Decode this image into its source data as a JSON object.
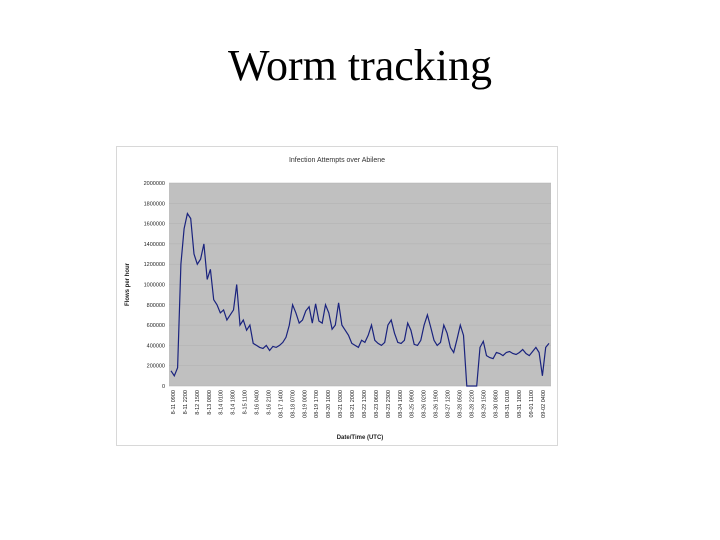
{
  "slide": {
    "title": "Worm tracking"
  },
  "colors": {
    "plot_area": "#c0c0c0",
    "series": "#1a237e",
    "gridline": "#b0b0b0"
  },
  "chart_data": {
    "type": "line",
    "title": "Infection Attempts over Abilene",
    "xlabel": "Date/Time (UTC)",
    "ylabel": "Flows per hour",
    "ylim": [
      0,
      2000000
    ],
    "yticks": [
      0,
      200000,
      400000,
      600000,
      800000,
      1000000,
      1200000,
      1400000,
      1600000,
      1800000,
      2000000
    ],
    "ytick_labels": [
      "0",
      "200000",
      "400000",
      "600000",
      "800000",
      "1000000",
      "1200000",
      "1400000",
      "1600000",
      "1800000",
      "2000000"
    ],
    "xtick_labels": [
      "8-11 0900",
      "8-11 2200",
      "8-12 1500",
      "8-13 0800",
      "8-14 0100",
      "8-14 1800",
      "8-15 1100",
      "8-16 0400",
      "8-16 2100",
      "08-17 1400",
      "08-18 0700",
      "08-19 0000",
      "08-19 1700",
      "08-20 1000",
      "08-21 0300",
      "08-21 2000",
      "08-22 1300",
      "08-23 0600",
      "08-23 2300",
      "08-24 1600",
      "08-25 0900",
      "08-26 0200",
      "08-26 1900",
      "08-27 1200",
      "08-28 0500",
      "08-28 2200",
      "08-29 1500",
      "08-30 0800",
      "08-31 0100",
      "08-31 1800",
      "09-01 1100",
      "09-02 0400"
    ],
    "grid": true,
    "legend": "none",
    "series": [
      {
        "values": [
          150000,
          100000,
          180000,
          1200000,
          1550000,
          1700000,
          1650000,
          1300000,
          1200000,
          1250000,
          1400000,
          1050000,
          1150000,
          850000,
          800000,
          720000,
          750000,
          650000,
          700000,
          750000,
          1000000,
          600000,
          650000,
          550000,
          600000,
          420000,
          400000,
          380000,
          370000,
          400000,
          350000,
          390000,
          380000,
          400000,
          430000,
          480000,
          600000,
          800000,
          720000,
          620000,
          650000,
          740000,
          780000,
          620000,
          810000,
          640000,
          620000,
          800000,
          720000,
          560000,
          600000,
          820000,
          600000,
          550000,
          500000,
          420000,
          400000,
          380000,
          450000,
          430000,
          500000,
          600000,
          450000,
          420000,
          400000,
          430000,
          600000,
          650000,
          520000,
          430000,
          420000,
          450000,
          620000,
          550000,
          410000,
          400000,
          450000,
          600000,
          700000,
          580000,
          450000,
          400000,
          430000,
          600000,
          520000,
          380000,
          330000,
          460000,
          600000,
          500000,
          0,
          0,
          0,
          0,
          380000,
          440000,
          300000,
          280000,
          270000,
          330000,
          320000,
          300000,
          330000,
          340000,
          320000,
          310000,
          330000,
          360000,
          320000,
          300000,
          340000,
          380000,
          330000,
          100000,
          380000,
          420000
        ]
      }
    ]
  }
}
